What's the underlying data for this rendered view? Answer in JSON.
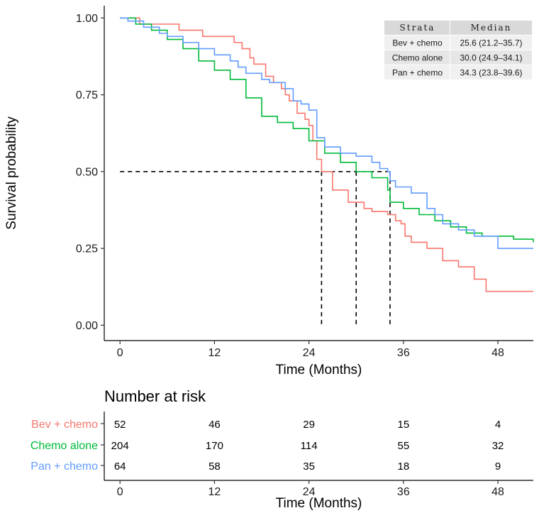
{
  "chart_data": [
    {
      "type": "line",
      "title": "",
      "xlabel": "Time (Months)",
      "ylabel": "Survival probability",
      "xlim": [
        -2,
        52.5
      ],
      "ylim": [
        -0.05,
        1.04
      ],
      "xticks": [
        0,
        12,
        24,
        36,
        48
      ],
      "yticks": [
        0.0,
        0.25,
        0.5,
        0.75,
        1.0
      ],
      "ytick_labels": [
        "0.00",
        "0.25",
        "0.50",
        "0.75",
        "1.00"
      ],
      "grid": false,
      "series": [
        {
          "name": "Bev + chemo",
          "color": "#F8766D",
          "x": [
            0,
            2.5,
            7.5,
            10.5,
            14.5,
            15.5,
            16.5,
            17.0,
            18.5,
            19.5,
            20.5,
            21.0,
            21.5,
            22.5,
            23.5,
            24.0,
            24.5,
            25.0,
            25.6,
            27.0,
            29.0,
            31.0,
            32.0,
            34.0,
            35.0,
            35.7,
            36.2,
            37.0,
            39.0,
            41.0,
            43.0,
            45.0,
            46.5,
            52.5
          ],
          "y": [
            1.0,
            0.98,
            0.96,
            0.94,
            0.92,
            0.9,
            0.87,
            0.85,
            0.81,
            0.79,
            0.77,
            0.75,
            0.73,
            0.69,
            0.67,
            0.65,
            0.6,
            0.54,
            0.5,
            0.44,
            0.4,
            0.38,
            0.37,
            0.36,
            0.34,
            0.33,
            0.29,
            0.27,
            0.25,
            0.21,
            0.19,
            0.15,
            0.11,
            0.11
          ]
        },
        {
          "name": "Chemo alone",
          "color": "#00BA38",
          "x": [
            0,
            2,
            4,
            6,
            8,
            10,
            12,
            14,
            16,
            18,
            20,
            22,
            24,
            26,
            28,
            30,
            32,
            34,
            34.3,
            36,
            38,
            40,
            42,
            44,
            46,
            48,
            50,
            52,
            52.5
          ],
          "y": [
            1.0,
            0.98,
            0.96,
            0.93,
            0.9,
            0.86,
            0.83,
            0.8,
            0.74,
            0.68,
            0.66,
            0.64,
            0.6,
            0.56,
            0.53,
            0.5,
            0.48,
            0.44,
            0.4,
            0.38,
            0.36,
            0.34,
            0.32,
            0.3,
            0.29,
            0.29,
            0.28,
            0.28,
            0.27
          ]
        },
        {
          "name": "Pan + chemo",
          "color": "#619CFF",
          "x": [
            0,
            1,
            3,
            5,
            6,
            8,
            10,
            12,
            14,
            15,
            16,
            18,
            19,
            21,
            22,
            23,
            24,
            25,
            26,
            28,
            30,
            32,
            33,
            34,
            34.3,
            35,
            37,
            39,
            40,
            41,
            43,
            45,
            48,
            52.5
          ],
          "y": [
            1.0,
            0.99,
            0.97,
            0.95,
            0.94,
            0.92,
            0.9,
            0.88,
            0.86,
            0.84,
            0.82,
            0.8,
            0.79,
            0.77,
            0.73,
            0.72,
            0.7,
            0.61,
            0.58,
            0.56,
            0.55,
            0.53,
            0.51,
            0.5,
            0.47,
            0.45,
            0.43,
            0.38,
            0.36,
            0.33,
            0.31,
            0.29,
            0.25,
            0.25
          ]
        }
      ],
      "median_lines": {
        "level": 0.5,
        "x_values": [
          25.6,
          30.0,
          34.3
        ]
      },
      "annotations": {
        "median_table": {
          "headers": [
            "Strata",
            "Median"
          ],
          "rows": [
            [
              "Bev + chemo",
              "25.6 (21.2–35.7)"
            ],
            [
              "Chemo alone",
              "30.0 (24.9–34.1)"
            ],
            [
              "Pan + chemo",
              "34.3 (23.8–39.6)"
            ]
          ]
        }
      }
    },
    {
      "type": "table",
      "title": "Number at risk",
      "xlabel": "Time (Months)",
      "xticks": [
        0,
        12,
        24,
        36,
        48
      ],
      "rows": [
        {
          "name": "Bev + chemo",
          "color": "#F8766D",
          "values": [
            52,
            46,
            29,
            15,
            4
          ]
        },
        {
          "name": "Chemo alone",
          "color": "#00BA38",
          "values": [
            204,
            170,
            114,
            55,
            32
          ]
        },
        {
          "name": "Pan + chemo",
          "color": "#619CFF",
          "values": [
            64,
            58,
            35,
            18,
            9
          ]
        }
      ]
    }
  ]
}
